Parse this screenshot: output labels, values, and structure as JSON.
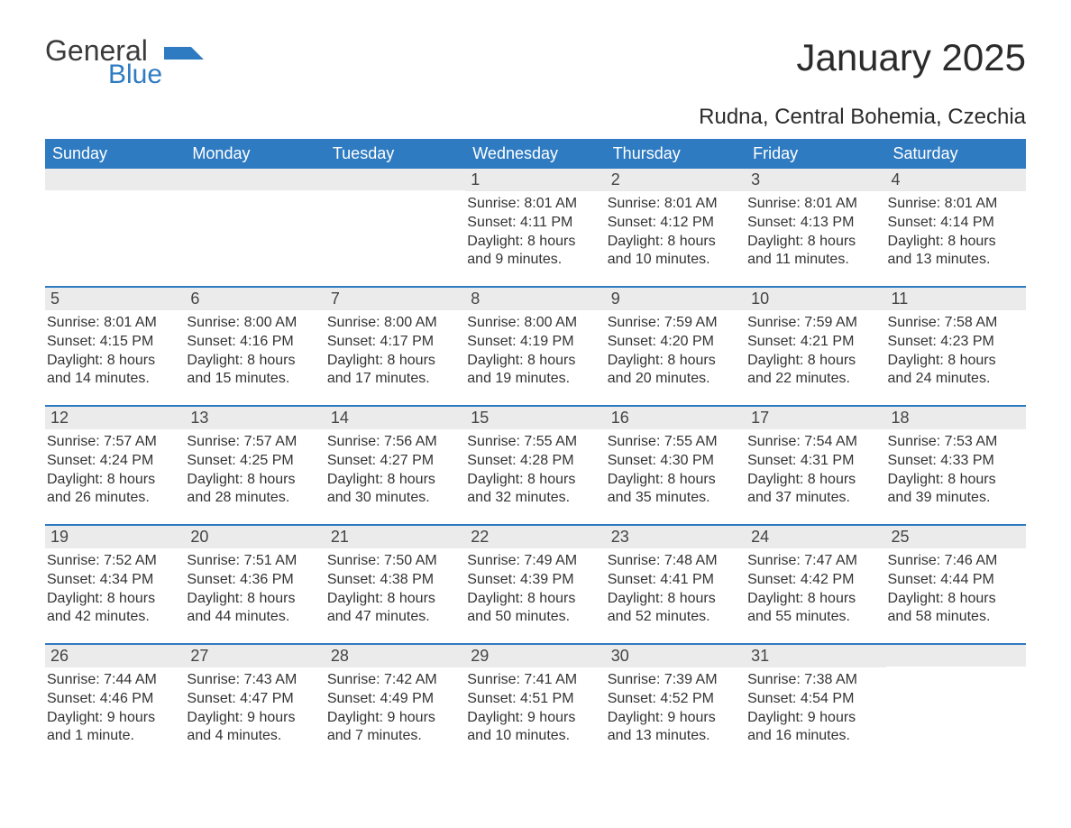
{
  "logo": {
    "word1": "General",
    "word2": "Blue"
  },
  "title": "January 2025",
  "location": "Rudna, Central Bohemia, Czechia",
  "colors": {
    "header_bg": "#2f7bc2",
    "header_text": "#ffffff",
    "daynum_bg": "#ebebeb",
    "rule": "#2f7bc2",
    "body_text": "#333333",
    "logo_blue": "#2f7bc2",
    "logo_gray": "#3b3b3b"
  },
  "weekdays": [
    "Sunday",
    "Monday",
    "Tuesday",
    "Wednesday",
    "Thursday",
    "Friday",
    "Saturday"
  ],
  "weeks": [
    [
      null,
      null,
      null,
      {
        "n": "1",
        "sunrise": "8:01 AM",
        "sunset": "4:11 PM",
        "daylight": "8 hours and 9 minutes."
      },
      {
        "n": "2",
        "sunrise": "8:01 AM",
        "sunset": "4:12 PM",
        "daylight": "8 hours and 10 minutes."
      },
      {
        "n": "3",
        "sunrise": "8:01 AM",
        "sunset": "4:13 PM",
        "daylight": "8 hours and 11 minutes."
      },
      {
        "n": "4",
        "sunrise": "8:01 AM",
        "sunset": "4:14 PM",
        "daylight": "8 hours and 13 minutes."
      }
    ],
    [
      {
        "n": "5",
        "sunrise": "8:01 AM",
        "sunset": "4:15 PM",
        "daylight": "8 hours and 14 minutes."
      },
      {
        "n": "6",
        "sunrise": "8:00 AM",
        "sunset": "4:16 PM",
        "daylight": "8 hours and 15 minutes."
      },
      {
        "n": "7",
        "sunrise": "8:00 AM",
        "sunset": "4:17 PM",
        "daylight": "8 hours and 17 minutes."
      },
      {
        "n": "8",
        "sunrise": "8:00 AM",
        "sunset": "4:19 PM",
        "daylight": "8 hours and 19 minutes."
      },
      {
        "n": "9",
        "sunrise": "7:59 AM",
        "sunset": "4:20 PM",
        "daylight": "8 hours and 20 minutes."
      },
      {
        "n": "10",
        "sunrise": "7:59 AM",
        "sunset": "4:21 PM",
        "daylight": "8 hours and 22 minutes."
      },
      {
        "n": "11",
        "sunrise": "7:58 AM",
        "sunset": "4:23 PM",
        "daylight": "8 hours and 24 minutes."
      }
    ],
    [
      {
        "n": "12",
        "sunrise": "7:57 AM",
        "sunset": "4:24 PM",
        "daylight": "8 hours and 26 minutes."
      },
      {
        "n": "13",
        "sunrise": "7:57 AM",
        "sunset": "4:25 PM",
        "daylight": "8 hours and 28 minutes."
      },
      {
        "n": "14",
        "sunrise": "7:56 AM",
        "sunset": "4:27 PM",
        "daylight": "8 hours and 30 minutes."
      },
      {
        "n": "15",
        "sunrise": "7:55 AM",
        "sunset": "4:28 PM",
        "daylight": "8 hours and 32 minutes."
      },
      {
        "n": "16",
        "sunrise": "7:55 AM",
        "sunset": "4:30 PM",
        "daylight": "8 hours and 35 minutes."
      },
      {
        "n": "17",
        "sunrise": "7:54 AM",
        "sunset": "4:31 PM",
        "daylight": "8 hours and 37 minutes."
      },
      {
        "n": "18",
        "sunrise": "7:53 AM",
        "sunset": "4:33 PM",
        "daylight": "8 hours and 39 minutes."
      }
    ],
    [
      {
        "n": "19",
        "sunrise": "7:52 AM",
        "sunset": "4:34 PM",
        "daylight": "8 hours and 42 minutes."
      },
      {
        "n": "20",
        "sunrise": "7:51 AM",
        "sunset": "4:36 PM",
        "daylight": "8 hours and 44 minutes."
      },
      {
        "n": "21",
        "sunrise": "7:50 AM",
        "sunset": "4:38 PM",
        "daylight": "8 hours and 47 minutes."
      },
      {
        "n": "22",
        "sunrise": "7:49 AM",
        "sunset": "4:39 PM",
        "daylight": "8 hours and 50 minutes."
      },
      {
        "n": "23",
        "sunrise": "7:48 AM",
        "sunset": "4:41 PM",
        "daylight": "8 hours and 52 minutes."
      },
      {
        "n": "24",
        "sunrise": "7:47 AM",
        "sunset": "4:42 PM",
        "daylight": "8 hours and 55 minutes."
      },
      {
        "n": "25",
        "sunrise": "7:46 AM",
        "sunset": "4:44 PM",
        "daylight": "8 hours and 58 minutes."
      }
    ],
    [
      {
        "n": "26",
        "sunrise": "7:44 AM",
        "sunset": "4:46 PM",
        "daylight": "9 hours and 1 minute."
      },
      {
        "n": "27",
        "sunrise": "7:43 AM",
        "sunset": "4:47 PM",
        "daylight": "9 hours and 4 minutes."
      },
      {
        "n": "28",
        "sunrise": "7:42 AM",
        "sunset": "4:49 PM",
        "daylight": "9 hours and 7 minutes."
      },
      {
        "n": "29",
        "sunrise": "7:41 AM",
        "sunset": "4:51 PM",
        "daylight": "9 hours and 10 minutes."
      },
      {
        "n": "30",
        "sunrise": "7:39 AM",
        "sunset": "4:52 PM",
        "daylight": "9 hours and 13 minutes."
      },
      {
        "n": "31",
        "sunrise": "7:38 AM",
        "sunset": "4:54 PM",
        "daylight": "9 hours and 16 minutes."
      },
      null
    ]
  ],
  "labels": {
    "sunrise": "Sunrise: ",
    "sunset": "Sunset: ",
    "daylight": "Daylight: "
  }
}
